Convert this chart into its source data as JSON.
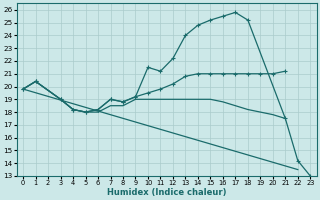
{
  "bg_color": "#cce8e8",
  "line_color": "#1a6b6b",
  "grid_color": "#aacccc",
  "xlabel": "Humidex (Indice chaleur)",
  "xlim": [
    -0.5,
    23.5
  ],
  "ylim": [
    13,
    26.5
  ],
  "yticks": [
    13,
    14,
    15,
    16,
    17,
    18,
    19,
    20,
    21,
    22,
    23,
    24,
    25,
    26
  ],
  "xticks": [
    0,
    1,
    2,
    3,
    4,
    5,
    6,
    7,
    8,
    9,
    10,
    11,
    12,
    13,
    14,
    15,
    16,
    17,
    18,
    19,
    20,
    21,
    22,
    23
  ],
  "curves": [
    {
      "x": [
        0,
        1,
        3,
        4,
        5,
        6,
        7,
        8,
        9,
        10,
        11,
        12,
        13,
        14,
        15,
        16,
        17,
        18,
        21,
        22,
        23
      ],
      "y": [
        19.8,
        20.4,
        19.0,
        18.2,
        18.0,
        18.2,
        19.0,
        18.8,
        19.2,
        21.5,
        21.2,
        22.2,
        24.0,
        24.8,
        25.2,
        25.5,
        25.8,
        25.2,
        17.5,
        14.2,
        13.0
      ],
      "marker": true
    },
    {
      "x": [
        0,
        1,
        3,
        4,
        5,
        6,
        7,
        8,
        9,
        10,
        11,
        12,
        13,
        14,
        15,
        16,
        17,
        18,
        19,
        20,
        21
      ],
      "y": [
        19.8,
        20.4,
        19.0,
        18.2,
        18.0,
        18.2,
        19.0,
        18.8,
        19.2,
        19.5,
        19.8,
        20.2,
        20.8,
        21.0,
        21.0,
        21.0,
        21.0,
        21.0,
        21.0,
        21.0,
        21.2
      ],
      "marker": true
    },
    {
      "x": [
        0,
        1,
        3,
        4,
        5,
        6,
        7,
        8,
        9,
        10,
        11,
        12,
        13,
        14,
        15,
        16,
        17,
        18,
        19,
        20,
        21
      ],
      "y": [
        19.8,
        20.4,
        19.0,
        18.2,
        18.0,
        18.0,
        18.5,
        18.5,
        19.0,
        19.0,
        19.0,
        19.0,
        19.0,
        19.0,
        19.0,
        18.8,
        18.5,
        18.2,
        18.0,
        17.8,
        17.5
      ],
      "marker": false
    },
    {
      "x": [
        0,
        22
      ],
      "y": [
        19.8,
        13.5
      ],
      "marker": false
    }
  ]
}
